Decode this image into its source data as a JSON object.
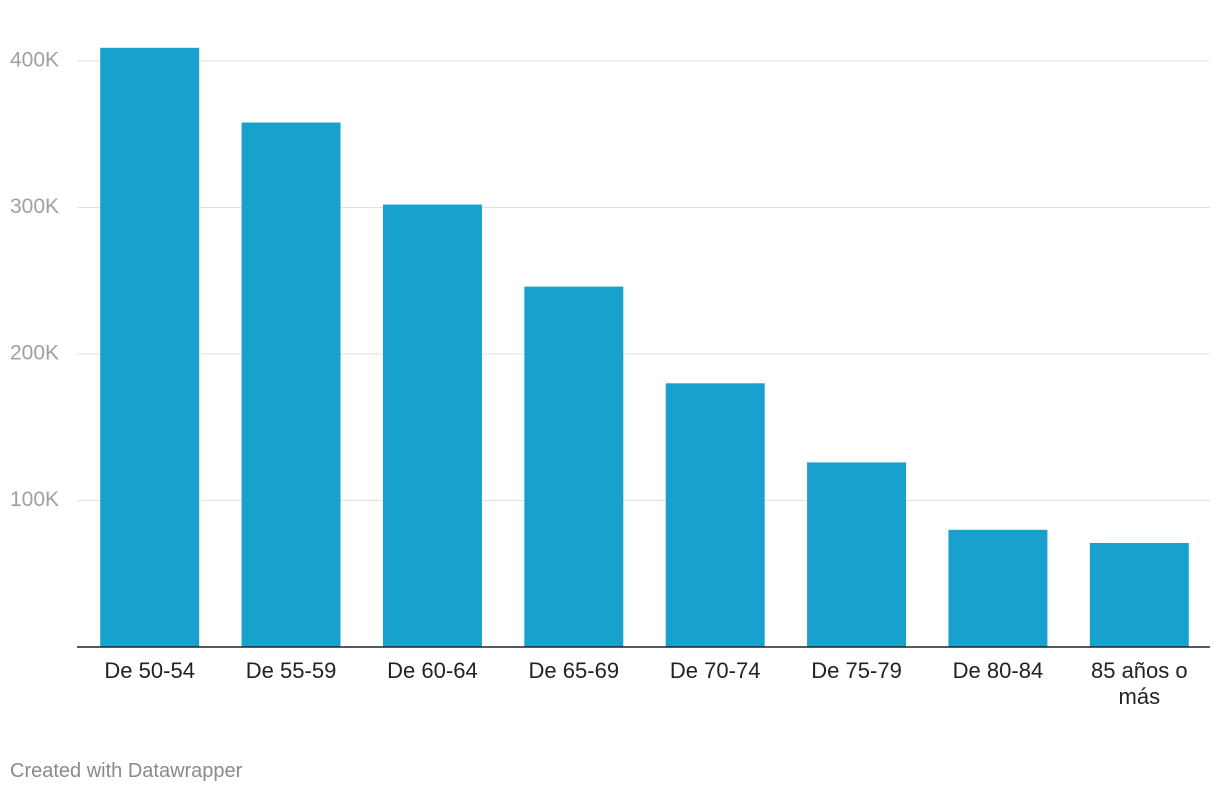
{
  "chart_data": {
    "type": "bar",
    "categories": [
      "De 50-54",
      "De 55-59",
      "De 60-64",
      "De 65-69",
      "De 70-74",
      "De 75-79",
      "De 80-84",
      "85 años o más"
    ],
    "values": [
      409000,
      358000,
      302000,
      246000,
      180000,
      126000,
      80000,
      71000
    ],
    "color": "#18a1cd",
    "ylim": [
      0,
      400000
    ],
    "yticks": [
      {
        "value": 100000,
        "label": "100K"
      },
      {
        "value": 200000,
        "label": "200K"
      },
      {
        "value": 300000,
        "label": "300K"
      },
      {
        "value": 400000,
        "label": "400K"
      }
    ],
    "grid": true
  },
  "footer": "Created with Datawrapper"
}
